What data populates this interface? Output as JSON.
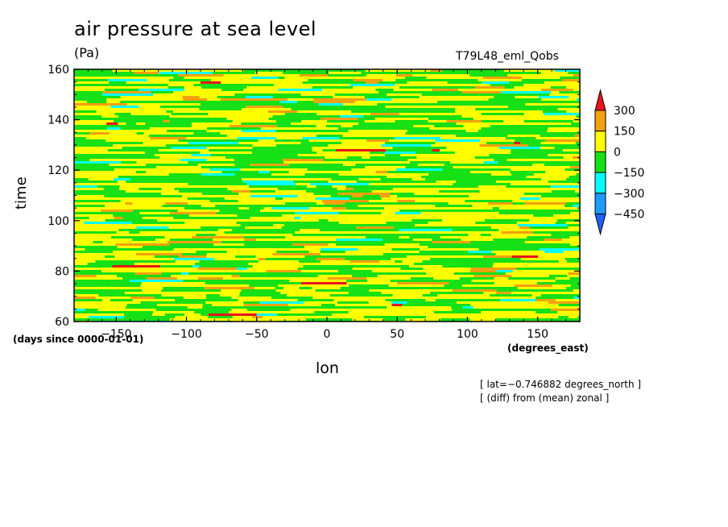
{
  "chart_data": {
    "type": "heatmap",
    "title": "air pressure at sea level",
    "units": "(Pa)",
    "run_name": "T79L48_eml_Qobs",
    "xlabel": "lon",
    "ylabel": "time",
    "x_unit": "(degrees_east)",
    "y_unit": "(days since 0000-01-01)",
    "xlim": [
      -180,
      180
    ],
    "ylim": [
      60,
      160
    ],
    "x_ticks": [
      -150,
      -100,
      -50,
      0,
      50,
      100,
      150
    ],
    "x_tick_labels": [
      "−150",
      "−100",
      "−50",
      "0",
      "50",
      "100",
      "150"
    ],
    "y_ticks": [
      60,
      80,
      100,
      120,
      140,
      160
    ],
    "y_tick_labels": [
      "60",
      "80",
      "100",
      "120",
      "140",
      "160"
    ],
    "colorbar": {
      "levels": [
        300,
        150,
        0,
        -150,
        -300,
        -450
      ],
      "level_labels": [
        "300",
        "150",
        "0",
        "−150",
        "−300",
        "−450"
      ],
      "colors": [
        "#e8151a",
        "#f2a10f",
        "#ffff00",
        "#16e016",
        "#00ffff",
        "#1e9bff",
        "#2060ff"
      ]
    },
    "annotations": [
      "[ lat=−0.746882 degrees_north ]",
      "[ (diff) from (mean) zonal ]"
    ]
  }
}
